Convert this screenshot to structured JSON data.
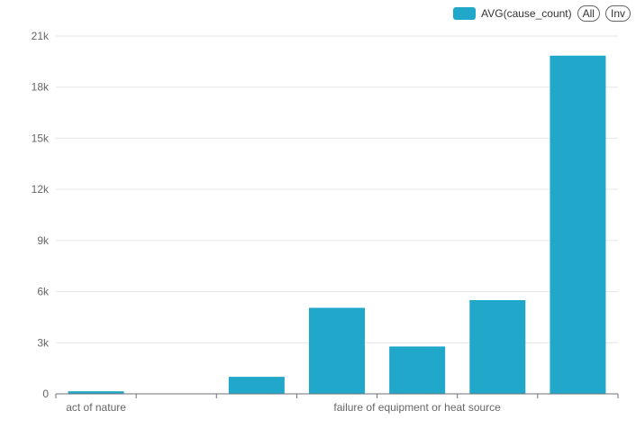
{
  "chart_data": {
    "type": "bar",
    "categories": [
      "act of nature",
      "",
      "",
      "",
      "failure of equipment or heat source",
      "",
      ""
    ],
    "series": [
      {
        "name": "AVG(cause_count)",
        "values": [
          150,
          0,
          1000,
          5050,
          2780,
          5500,
          19850
        ]
      }
    ],
    "ylim": [
      0,
      21000
    ],
    "y_ticks": [
      0,
      3000,
      6000,
      9000,
      12000,
      15000,
      18000,
      21000
    ],
    "y_tick_labels": [
      "0",
      "3k",
      "6k",
      "9k",
      "12k",
      "15k",
      "18k",
      "21k"
    ],
    "grid": true,
    "legend_position": "top-right",
    "bar_color": "#20a7c9"
  },
  "legend": {
    "series_label": "AVG(cause_count)",
    "all_label": "All",
    "inv_label": "Inv"
  }
}
